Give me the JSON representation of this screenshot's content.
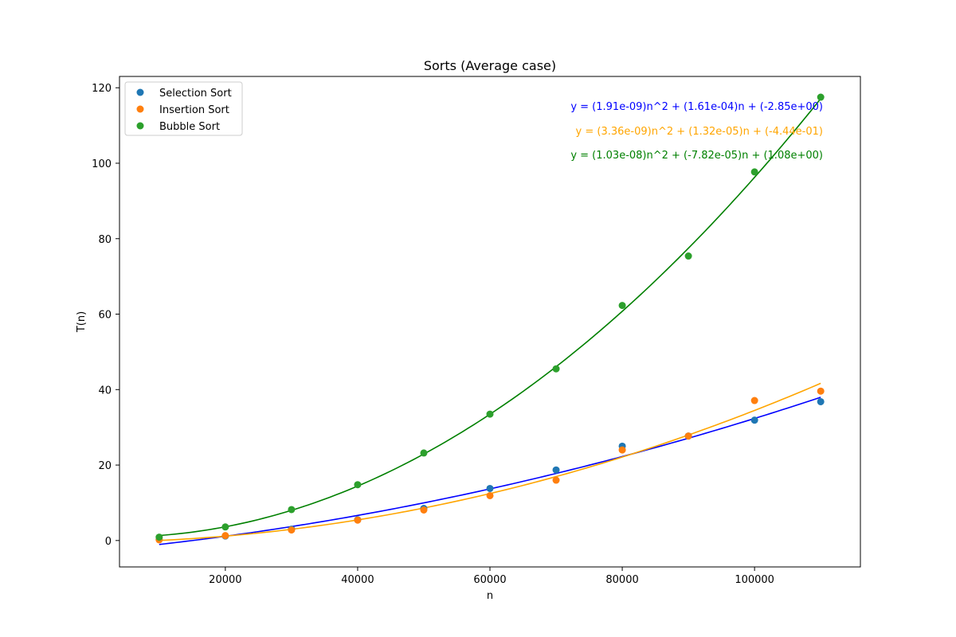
{
  "chart_data": {
    "type": "scatter",
    "title": "Sorts (Average case)",
    "xlabel": "n",
    "ylabel": "T(n)",
    "xlim": [
      4000,
      116000
    ],
    "ylim": [
      -7,
      123
    ],
    "xticks": [
      20000,
      40000,
      60000,
      80000,
      100000
    ],
    "xtick_labels": [
      "20000",
      "40000",
      "60000",
      "80000",
      "100000"
    ],
    "yticks": [
      0,
      20,
      40,
      60,
      80,
      100,
      120
    ],
    "ytick_labels": [
      "0",
      "20",
      "40",
      "60",
      "80",
      "100",
      "120"
    ],
    "legend_position": "top-left",
    "x": [
      10000,
      20000,
      30000,
      40000,
      50000,
      60000,
      70000,
      80000,
      90000,
      100000,
      110000
    ],
    "series": [
      {
        "name": "Selection Sort",
        "color": "#1f77b4",
        "values": [
          0.3,
          1.2,
          3.0,
          5.5,
          8.5,
          13.8,
          18.7,
          25.0,
          27.7,
          31.9,
          36.8
        ]
      },
      {
        "name": "Insertion Sort",
        "color": "#ff7f0e",
        "values": [
          0.2,
          1.3,
          2.8,
          5.4,
          8.1,
          11.9,
          16.0,
          24.0,
          27.7,
          37.1,
          39.6
        ]
      },
      {
        "name": "Bubble Sort",
        "color": "#2ca02c",
        "values": [
          0.9,
          3.6,
          8.2,
          14.8,
          23.2,
          33.5,
          45.5,
          62.3,
          75.4,
          97.7,
          117.5
        ]
      }
    ],
    "fits": [
      {
        "color": "#0000ff",
        "coefficients": [
          1.91e-09,
          0.000161,
          -2.85
        ],
        "equation": "y = (1.91e-09)n^2 + (1.61e-04)n + (-2.85e+00)"
      },
      {
        "color": "#ffa500",
        "coefficients": [
          3.36e-09,
          1.32e-05,
          -0.444
        ],
        "equation": "y = (3.36e-09)n^2 + (1.32e-05)n + (-4.44e-01)"
      },
      {
        "color": "#008000",
        "coefficients": [
          1.03e-08,
          -7.82e-05,
          1.08
        ],
        "equation": "y = (1.03e-08)n^2 + (-7.82e-05)n + (1.08e+00)"
      }
    ]
  }
}
